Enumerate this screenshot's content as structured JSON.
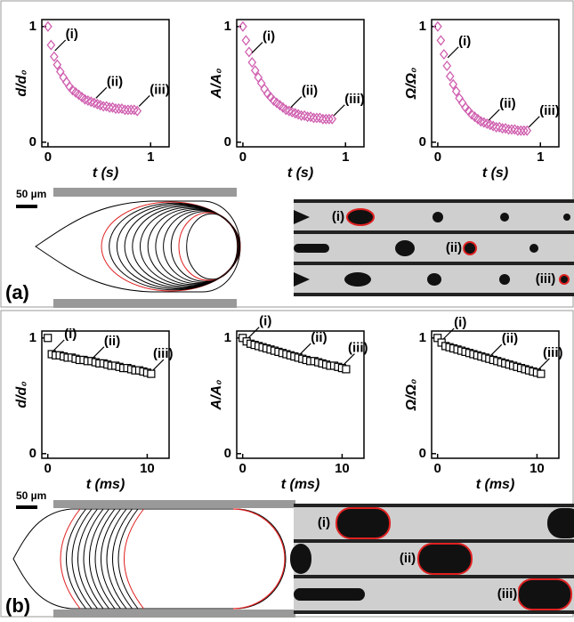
{
  "panels": [
    {
      "label": "(a)",
      "scale_bar": "50 µm",
      "image_labels": [
        "(i)",
        "(ii)",
        "(iii)"
      ]
    },
    {
      "label": "(b)",
      "scale_bar": "50 µm",
      "image_labels": [
        "(i)",
        "(ii)",
        "(iii)"
      ]
    }
  ],
  "chart_data": [
    {
      "type": "scatter",
      "marker": "diamond",
      "color": "#d060b0",
      "xlabel": "t (s)",
      "ylabel": "d/d₀",
      "xlim": [
        -0.06,
        1.18
      ],
      "ylim": [
        -0.04,
        1.06
      ],
      "xticks": [
        0,
        1
      ],
      "yticks": [
        0,
        1
      ],
      "x": [
        0,
        0.03,
        0.06,
        0.09,
        0.12,
        0.15,
        0.18,
        0.21,
        0.24,
        0.27,
        0.3,
        0.33,
        0.36,
        0.39,
        0.42,
        0.45,
        0.48,
        0.51,
        0.54,
        0.57,
        0.6,
        0.63,
        0.66,
        0.69,
        0.72,
        0.75,
        0.78,
        0.81,
        0.84,
        0.87
      ],
      "values": [
        1,
        0.84,
        0.74,
        0.67,
        0.61,
        0.56,
        0.52,
        0.48,
        0.45,
        0.43,
        0.41,
        0.39,
        0.37,
        0.36,
        0.35,
        0.34,
        0.33,
        0.32,
        0.31,
        0.31,
        0.3,
        0.3,
        0.29,
        0.29,
        0.29,
        0.28,
        0.28,
        0.28,
        0.28,
        0.27
      ],
      "annotations": [
        {
          "text": "(i)",
          "x": 0.05,
          "y": 0.76
        },
        {
          "text": "(ii)",
          "x": 0.45,
          "y": 0.35
        },
        {
          "text": "(iii)",
          "x": 0.87,
          "y": 0.28
        }
      ]
    },
    {
      "type": "scatter",
      "marker": "diamond",
      "color": "#d060b0",
      "xlabel": "t (s)",
      "ylabel": "A/A₀",
      "xlim": [
        -0.06,
        1.18
      ],
      "ylim": [
        -0.04,
        1.06
      ],
      "xticks": [
        0,
        1
      ],
      "yticks": [
        0,
        1
      ],
      "x": [
        0,
        0.03,
        0.06,
        0.09,
        0.12,
        0.15,
        0.18,
        0.21,
        0.24,
        0.27,
        0.3,
        0.33,
        0.36,
        0.39,
        0.42,
        0.45,
        0.48,
        0.51,
        0.54,
        0.57,
        0.6,
        0.63,
        0.66,
        0.69,
        0.72,
        0.75,
        0.78,
        0.81,
        0.84,
        0.87
      ],
      "values": [
        1,
        0.88,
        0.78,
        0.69,
        0.62,
        0.56,
        0.51,
        0.46,
        0.42,
        0.39,
        0.36,
        0.34,
        0.32,
        0.3,
        0.28,
        0.27,
        0.26,
        0.25,
        0.24,
        0.23,
        0.23,
        0.22,
        0.22,
        0.21,
        0.21,
        0.21,
        0.2,
        0.2,
        0.2,
        0.2
      ],
      "annotations": [
        {
          "text": "(i)",
          "x": 0.07,
          "y": 0.74
        },
        {
          "text": "(ii)",
          "x": 0.45,
          "y": 0.27
        },
        {
          "text": "(iii)",
          "x": 0.87,
          "y": 0.2
        }
      ]
    },
    {
      "type": "scatter",
      "marker": "diamond",
      "color": "#d060b0",
      "xlabel": "t (s)",
      "ylabel": "Ω/Ω₀",
      "xlim": [
        -0.06,
        1.18
      ],
      "ylim": [
        -0.04,
        1.06
      ],
      "xticks": [
        0,
        1
      ],
      "yticks": [
        0,
        1
      ],
      "x": [
        0,
        0.03,
        0.06,
        0.09,
        0.12,
        0.15,
        0.18,
        0.21,
        0.24,
        0.27,
        0.3,
        0.33,
        0.36,
        0.39,
        0.42,
        0.45,
        0.48,
        0.51,
        0.54,
        0.57,
        0.6,
        0.63,
        0.66,
        0.69,
        0.72,
        0.75,
        0.78,
        0.81,
        0.84,
        0.87
      ],
      "values": [
        1,
        0.88,
        0.76,
        0.66,
        0.57,
        0.5,
        0.44,
        0.38,
        0.34,
        0.3,
        0.27,
        0.24,
        0.22,
        0.2,
        0.18,
        0.17,
        0.16,
        0.15,
        0.14,
        0.13,
        0.13,
        0.12,
        0.12,
        0.11,
        0.11,
        0.11,
        0.1,
        0.1,
        0.1,
        0.1
      ],
      "annotations": [
        {
          "text": "(i)",
          "x": 0.08,
          "y": 0.7
        },
        {
          "text": "(ii)",
          "x": 0.48,
          "y": 0.16
        },
        {
          "text": "(iii)",
          "x": 0.87,
          "y": 0.1
        }
      ]
    },
    {
      "type": "scatter",
      "marker": "square",
      "color": "#000000",
      "xlabel": "t (ms)",
      "ylabel": "d/d₀",
      "xlim": [
        -0.6,
        12.2
      ],
      "ylim": [
        -0.04,
        1.06
      ],
      "xticks": [
        0,
        10
      ],
      "yticks": [
        0,
        1
      ],
      "x": [
        0,
        0.4,
        0.8,
        1.2,
        1.6,
        2.0,
        2.4,
        2.8,
        3.2,
        3.6,
        4.0,
        4.4,
        4.8,
        5.2,
        5.6,
        6.0,
        6.4,
        6.8,
        7.2,
        7.6,
        8.0,
        8.4,
        8.8,
        9.2,
        9.6,
        10.0,
        10.4
      ],
      "values": [
        1,
        0.86,
        0.85,
        0.85,
        0.84,
        0.83,
        0.83,
        0.82,
        0.81,
        0.81,
        0.8,
        0.8,
        0.79,
        0.78,
        0.78,
        0.77,
        0.76,
        0.76,
        0.75,
        0.74,
        0.74,
        0.73,
        0.72,
        0.72,
        0.71,
        0.7,
        0.69
      ],
      "annotations": [
        {
          "text": "(i)",
          "x": 0.4,
          "y": 0.86
        },
        {
          "text": "(ii)",
          "x": 4.4,
          "y": 0.8
        },
        {
          "text": "(iii)",
          "x": 10.4,
          "y": 0.69
        }
      ]
    },
    {
      "type": "scatter",
      "marker": "square",
      "color": "#000000",
      "xlabel": "t (ms)",
      "ylabel": "A/A₀",
      "xlim": [
        -0.6,
        12.2
      ],
      "ylim": [
        -0.04,
        1.06
      ],
      "xticks": [
        0,
        10
      ],
      "yticks": [
        0,
        1
      ],
      "x": [
        0,
        0.4,
        0.8,
        1.2,
        1.6,
        2.0,
        2.4,
        2.8,
        3.2,
        3.6,
        4.0,
        4.4,
        4.8,
        5.2,
        5.6,
        6.0,
        6.4,
        6.8,
        7.2,
        7.6,
        8.0,
        8.4,
        8.8,
        9.2,
        9.6,
        10.0,
        10.4
      ],
      "values": [
        1,
        0.97,
        0.95,
        0.94,
        0.93,
        0.92,
        0.91,
        0.9,
        0.89,
        0.88,
        0.87,
        0.86,
        0.85,
        0.84,
        0.83,
        0.82,
        0.81,
        0.8,
        0.8,
        0.79,
        0.78,
        0.77,
        0.76,
        0.76,
        0.75,
        0.74,
        0.73
      ],
      "annotations": [
        {
          "text": "(i)",
          "x": 0.4,
          "y": 0.97
        },
        {
          "text": "(ii)",
          "x": 5.6,
          "y": 0.83
        },
        {
          "text": "(iii)",
          "x": 10.0,
          "y": 0.74
        }
      ]
    },
    {
      "type": "scatter",
      "marker": "square",
      "color": "#000000",
      "xlabel": "t (ms)",
      "ylabel": "Ω/Ω₀",
      "xlim": [
        -0.6,
        12.2
      ],
      "ylim": [
        -0.04,
        1.06
      ],
      "xticks": [
        0,
        10
      ],
      "yticks": [
        0,
        1
      ],
      "x": [
        0,
        0.4,
        0.8,
        1.2,
        1.6,
        2.0,
        2.4,
        2.8,
        3.2,
        3.6,
        4.0,
        4.4,
        4.8,
        5.2,
        5.6,
        6.0,
        6.4,
        6.8,
        7.2,
        7.6,
        8.0,
        8.4,
        8.8,
        9.2,
        9.6,
        10.0,
        10.4
      ],
      "values": [
        1,
        0.96,
        0.93,
        0.92,
        0.91,
        0.9,
        0.89,
        0.88,
        0.87,
        0.86,
        0.85,
        0.84,
        0.83,
        0.82,
        0.81,
        0.8,
        0.79,
        0.78,
        0.77,
        0.76,
        0.75,
        0.74,
        0.73,
        0.72,
        0.71,
        0.7,
        0.69
      ],
      "annotations": [
        {
          "text": "(i)",
          "x": 0.4,
          "y": 0.96
        },
        {
          "text": "(ii)",
          "x": 5.2,
          "y": 0.82
        },
        {
          "text": "(iii)",
          "x": 10.0,
          "y": 0.7
        }
      ]
    }
  ]
}
